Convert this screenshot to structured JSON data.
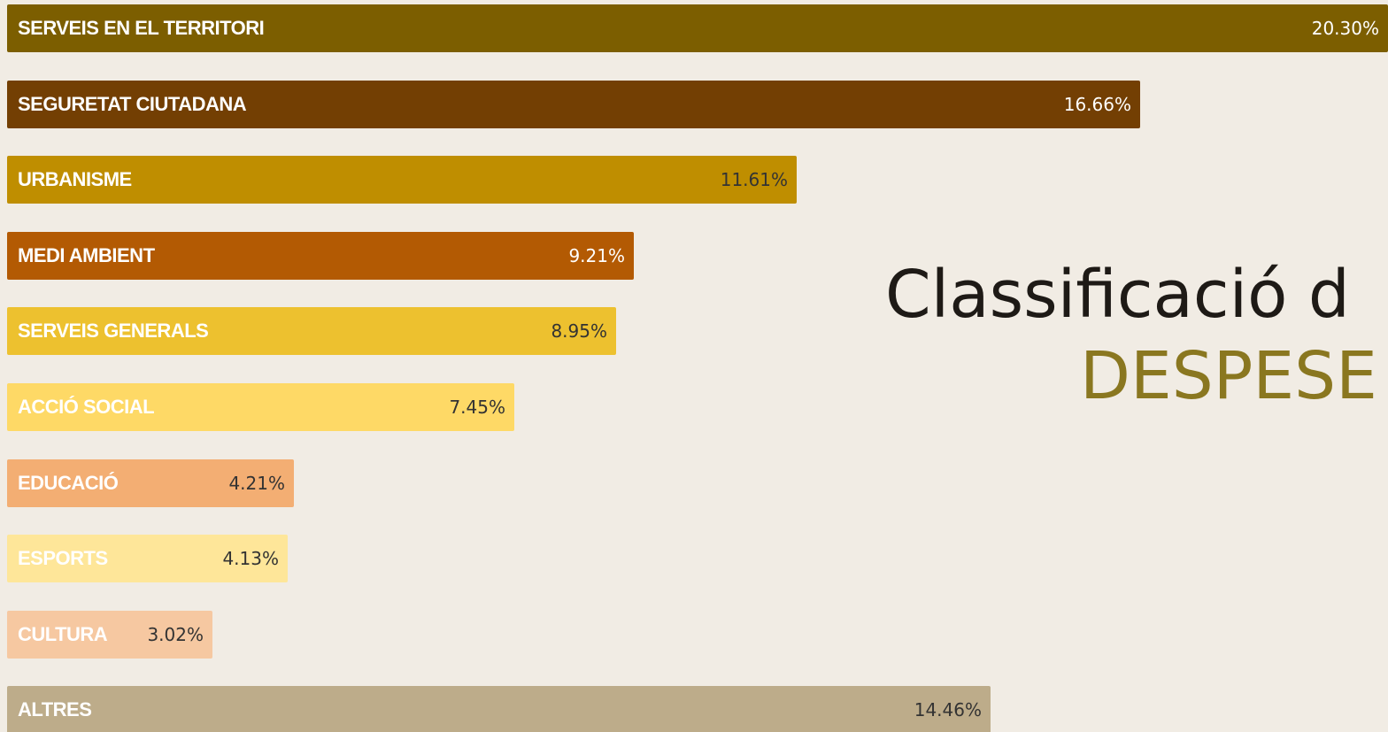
{
  "title": {
    "line1": "Classificació d",
    "line2": "DESPESE"
  },
  "chart_data": {
    "type": "bar",
    "orientation": "horizontal",
    "categories": [
      "SERVEIS EN EL TERRITORI",
      "SEGURETAT CIUTADANA",
      "URBANISME",
      "MEDI AMBIENT",
      "SERVEIS GENERALS",
      "ACCIÓ SOCIAL",
      "EDUCACIÓ",
      "ESPORTS",
      "CULTURA",
      "ALTRES"
    ],
    "values": [
      20.3,
      16.66,
      11.61,
      9.21,
      8.95,
      7.45,
      4.21,
      4.13,
      3.02,
      14.46
    ],
    "value_labels": [
      "20.30%",
      "16.66%",
      "11.61%",
      "9.21%",
      "8.95%",
      "7.45%",
      "4.21%",
      "4.13%",
      "3.02%",
      "14.46%"
    ],
    "colors": [
      "#7C5E00",
      "#733F03",
      "#BF8E00",
      "#B35A03",
      "#EDC12F",
      "#FED966",
      "#F3AE73",
      "#FEE699",
      "#F6C8A1",
      "#BDAC8A"
    ],
    "label_colors": [
      "#FFFFFF",
      "#FFFFFF",
      "#FFFFFF",
      "#FFFFFF",
      "#FFFFFF",
      "#FFFFFF",
      "#FFFFFF",
      "#FFFFFF",
      "#FFFFFF",
      "#FFFFFF"
    ],
    "value_colors": [
      "#FFFFFF",
      "#FFFFFF",
      "#333333",
      "#FFFFFF",
      "#333333",
      "#333333",
      "#333333",
      "#333333",
      "#333333",
      "#333333"
    ],
    "xlim": [
      0,
      20.3
    ],
    "grid": false,
    "legend": "none"
  }
}
